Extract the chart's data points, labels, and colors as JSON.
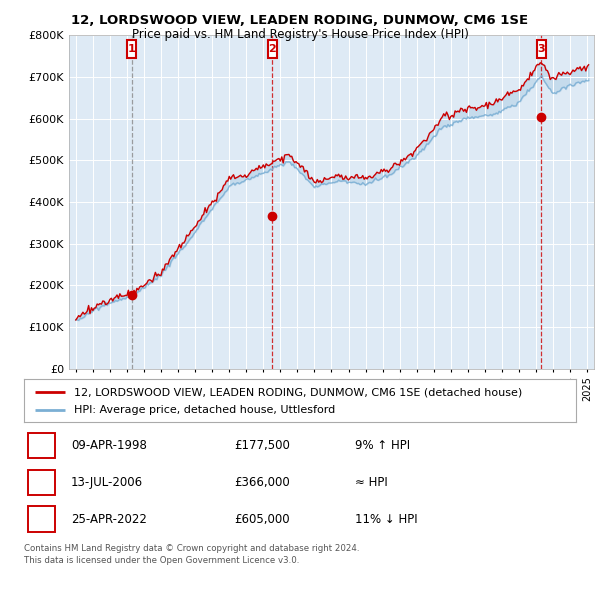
{
  "title1": "12, LORDSWOOD VIEW, LEADEN RODING, DUNMOW, CM6 1SE",
  "title2": "Price paid vs. HM Land Registry's House Price Index (HPI)",
  "transactions": [
    {
      "date": 1998.27,
      "price": 177500,
      "label": "1"
    },
    {
      "date": 2006.53,
      "price": 366000,
      "label": "2"
    },
    {
      "date": 2022.32,
      "price": 605000,
      "label": "3"
    }
  ],
  "transaction_details": [
    {
      "num": "1",
      "date": "09-APR-1998",
      "price": "£177,500",
      "hpi": "9% ↑ HPI"
    },
    {
      "num": "2",
      "date": "13-JUL-2006",
      "price": "£366,000",
      "hpi": "≈ HPI"
    },
    {
      "num": "3",
      "date": "25-APR-2022",
      "price": "£605,000",
      "hpi": "11% ↓ HPI"
    }
  ],
  "legend_house": "12, LORDSWOOD VIEW, LEADEN RODING, DUNMOW, CM6 1SE (detached house)",
  "legend_hpi": "HPI: Average price, detached house, Uttlesford",
  "footnote1": "Contains HM Land Registry data © Crown copyright and database right 2024.",
  "footnote2": "This data is licensed under the Open Government Licence v3.0.",
  "hpi_color": "#7bafd4",
  "price_color": "#cc0000",
  "background_color": "#deeaf5",
  "fill_color": "#deeaf5",
  "ylim": [
    0,
    800000
  ],
  "yticks": [
    0,
    100000,
    200000,
    300000,
    400000,
    500000,
    600000,
    700000,
    800000
  ],
  "ytick_labels": [
    "£0",
    "£100K",
    "£200K",
    "£300K",
    "£400K",
    "£500K",
    "£600K",
    "£700K",
    "£800K"
  ],
  "xmin": 1994.6,
  "xmax": 2025.4
}
